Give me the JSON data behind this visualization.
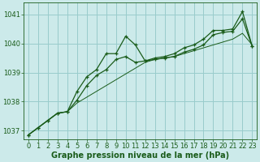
{
  "title": "Graphe pression niveau de la mer (hPa)",
  "background_color": "#cceaea",
  "grid_color": "#99cccc",
  "line_color": "#1a5c1a",
  "xlim": [
    -0.5,
    23.5
  ],
  "ylim": [
    1036.7,
    1041.4
  ],
  "yticks": [
    1037,
    1038,
    1039,
    1040,
    1041
  ],
  "xticks": [
    0,
    1,
    2,
    3,
    4,
    5,
    6,
    7,
    8,
    9,
    10,
    11,
    12,
    13,
    14,
    15,
    16,
    17,
    18,
    19,
    20,
    21,
    22,
    23
  ],
  "series": [
    [
      1036.85,
      1037.1,
      1037.35,
      1037.6,
      1037.65,
      1038.35,
      1038.85,
      1039.1,
      1039.65,
      1039.65,
      1040.25,
      1039.95,
      1039.4,
      1039.5,
      1039.55,
      1039.65,
      1039.85,
      1039.95,
      1040.15,
      1040.45,
      1040.45,
      1040.5,
      1041.1,
      1039.9
    ],
    [
      1036.85,
      1037.1,
      1037.35,
      1037.6,
      1037.65,
      1038.05,
      1038.55,
      1038.9,
      1039.1,
      1039.45,
      1039.55,
      1039.35,
      1039.4,
      1039.45,
      1039.5,
      1039.55,
      1039.7,
      1039.8,
      1039.95,
      1040.3,
      1040.38,
      1040.42,
      1040.85,
      1039.9
    ],
    [
      1036.85,
      1037.1,
      1037.35,
      1037.6,
      1037.65,
      1037.95,
      1038.15,
      1038.35,
      1038.55,
      1038.75,
      1038.95,
      1039.15,
      1039.35,
      1039.45,
      1039.5,
      1039.55,
      1039.65,
      1039.75,
      1039.85,
      1039.95,
      1040.05,
      1040.15,
      1040.35,
      1039.95
    ]
  ],
  "title_fontsize": 7,
  "tick_fontsize": 6
}
